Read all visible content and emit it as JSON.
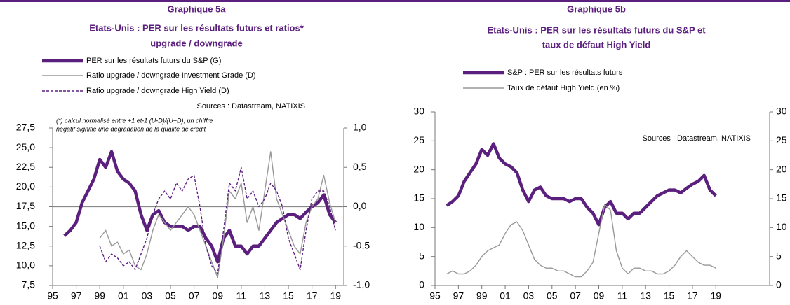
{
  "chart_data": [
    {
      "type": "line",
      "title": "Graphique 5a",
      "subtitle": [
        "Etats-Unis : PER sur les résultats futurs et ratios*",
        "upgrade / downgrade"
      ],
      "sources": "Sources : Datastream, NATIXIS",
      "note": [
        "(*) calcul normalisé entre +1 et-1 (U-D)/(U+D), un chiffre",
        "négatif signifie une dégradation de la qualité de crédit"
      ],
      "x": [
        1996,
        1996.5,
        1997,
        1997.5,
        1998,
        1998.5,
        1999,
        1999.5,
        2000,
        2000.5,
        2001,
        2001.5,
        2002,
        2002.5,
        2003,
        2003.5,
        2004,
        2004.5,
        2005,
        2005.5,
        2006,
        2006.5,
        2007,
        2007.5,
        2008,
        2008.5,
        2009,
        2009.5,
        2010,
        2010.5,
        2011,
        2011.5,
        2012,
        2012.5,
        2013,
        2013.5,
        2014,
        2014.5,
        2015,
        2015.5,
        2016,
        2016.5,
        2017,
        2017.5,
        2018,
        2018.5,
        2019
      ],
      "series": [
        {
          "name": "PER sur les résultats futurs du S&P (G)",
          "color": "#5b1f7e",
          "width": 4.5,
          "style": "solid",
          "values": [
            13.8,
            14.5,
            15.5,
            18,
            19.5,
            21,
            23.5,
            22.5,
            24.5,
            22,
            21,
            20.5,
            19.5,
            16.5,
            14.5,
            16.5,
            17,
            15.5,
            15,
            15,
            15,
            14.5,
            15,
            15,
            13.5,
            12.5,
            10.5,
            13.5,
            14.5,
            12.5,
            12.5,
            11.5,
            12.5,
            12.5,
            13.5,
            14.5,
            15.5,
            16,
            16.5,
            16.5,
            16,
            16.8,
            17.5,
            18,
            19,
            16.5,
            15.5
          ]
        },
        {
          "name": "Ratio upgrade / downgrade Investment Grade (D)",
          "color": "#999999",
          "width": 1.4,
          "style": "solid",
          "axis": "y2",
          "values": [
            null,
            null,
            null,
            null,
            null,
            null,
            -0.4,
            -0.3,
            -0.5,
            -0.45,
            -0.6,
            -0.55,
            -0.75,
            -0.8,
            -0.6,
            -0.3,
            -0.1,
            -0.2,
            -0.3,
            -0.2,
            -0.1,
            0.0,
            -0.1,
            -0.3,
            -0.5,
            -0.7,
            -0.9,
            -0.4,
            0.2,
            0.1,
            0.3,
            -0.2,
            0.0,
            -0.3,
            0.2,
            0.7,
            0.1,
            -0.1,
            -0.3,
            -0.5,
            -0.6,
            -0.2,
            0.0,
            0.1,
            0.4,
            0.05,
            -0.2
          ]
        },
        {
          "name": "Ratio upgrade / downgrade High Yield (D)",
          "color": "#5b1f7e",
          "width": 1.4,
          "style": "dashed",
          "axis": "y2",
          "values": [
            null,
            null,
            null,
            null,
            null,
            null,
            -0.5,
            -0.7,
            -0.6,
            -0.65,
            -0.75,
            -0.7,
            -0.8,
            -0.6,
            -0.4,
            -0.1,
            0.1,
            0.2,
            0.1,
            0.3,
            0.2,
            0.35,
            0.4,
            0.0,
            -0.5,
            -0.75,
            -0.85,
            -0.3,
            0.3,
            0.2,
            0.5,
            0.1,
            0.2,
            0.0,
            0.1,
            0.3,
            0.2,
            0.0,
            -0.4,
            -0.6,
            -0.8,
            -0.3,
            0.1,
            0.2,
            0.2,
            0.0,
            -0.3
          ]
        }
      ],
      "xlim": [
        1995,
        2019.7
      ],
      "xticks": [
        {
          "value": 1995,
          "label": "95"
        },
        {
          "value": 1997,
          "label": "97"
        },
        {
          "value": 1999,
          "label": "99"
        },
        {
          "value": 2001,
          "label": "01"
        },
        {
          "value": 2003,
          "label": "03"
        },
        {
          "value": 2005,
          "label": "05"
        },
        {
          "value": 2007,
          "label": "07"
        },
        {
          "value": 2009,
          "label": "09"
        },
        {
          "value": 2011,
          "label": "11"
        },
        {
          "value": 2013,
          "label": "13"
        },
        {
          "value": 2015,
          "label": "15"
        },
        {
          "value": 2017,
          "label": "17"
        },
        {
          "value": 2019,
          "label": "19"
        }
      ],
      "ylim": [
        7.5,
        27.5
      ],
      "yticks": [
        {
          "value": 7.5,
          "label": "7,5"
        },
        {
          "value": 10,
          "label": "10,0"
        },
        {
          "value": 12.5,
          "label": "12,5"
        },
        {
          "value": 15,
          "label": "15,0"
        },
        {
          "value": 17.5,
          "label": "17,5"
        },
        {
          "value": 20,
          "label": "20,0"
        },
        {
          "value": 22.5,
          "label": "22,5"
        },
        {
          "value": 25,
          "label": "25,0"
        },
        {
          "value": 27.5,
          "label": "27,5"
        }
      ],
      "y2lim": [
        -1,
        1
      ],
      "y2ticks": [
        {
          "value": -1,
          "label": "-1,0"
        },
        {
          "value": -0.5,
          "label": "-0,5"
        },
        {
          "value": 0,
          "label": "0,0"
        },
        {
          "value": 0.5,
          "label": "0,5"
        },
        {
          "value": 1,
          "label": "1,0"
        }
      ],
      "y2_zero_line": true
    },
    {
      "type": "line",
      "title": "Graphique 5b",
      "subtitle": [
        "Etats-Unis : PER sur les résultats futurs du S&P et",
        "taux de défaut High Yield"
      ],
      "sources": "Sources : Datastream, NATIXIS",
      "x": [
        1996,
        1996.5,
        1997,
        1997.5,
        1998,
        1998.5,
        1999,
        1999.5,
        2000,
        2000.5,
        2001,
        2001.5,
        2002,
        2002.5,
        2003,
        2003.5,
        2004,
        2004.5,
        2005,
        2005.5,
        2006,
        2006.5,
        2007,
        2007.5,
        2008,
        2008.5,
        2009,
        2009.5,
        2010,
        2010.5,
        2011,
        2011.5,
        2012,
        2012.5,
        2013,
        2013.5,
        2014,
        2014.5,
        2015,
        2015.5,
        2016,
        2016.5,
        2017,
        2017.5,
        2018,
        2018.5,
        2019
      ],
      "series": [
        {
          "name": "S&P : PER sur les résultats futurs",
          "color": "#5b1f7e",
          "width": 4.5,
          "style": "solid",
          "values": [
            13.8,
            14.5,
            15.5,
            18,
            19.5,
            21,
            23.5,
            22.5,
            24.5,
            22,
            21,
            20.5,
            19.5,
            16.5,
            14.5,
            16.5,
            17,
            15.5,
            15,
            15,
            15,
            14.5,
            15,
            15,
            13.5,
            12.5,
            10.5,
            13.5,
            14.5,
            12.5,
            12.5,
            11.5,
            12.5,
            12.5,
            13.5,
            14.5,
            15.5,
            16,
            16.5,
            16.5,
            16,
            16.8,
            17.5,
            18,
            19,
            16.5,
            15.5
          ]
        },
        {
          "name": "Taux de défaut High Yield (en %)",
          "color": "#999999",
          "width": 1.4,
          "style": "solid",
          "axis": "y2",
          "values": [
            2,
            2.5,
            2,
            2,
            2.5,
            3.5,
            5,
            6,
            6.5,
            7,
            9,
            10.5,
            11,
            9.5,
            7,
            4.5,
            3.5,
            3,
            3,
            2.5,
            2.5,
            2,
            1.5,
            1.5,
            2.5,
            4,
            9,
            14,
            13,
            6,
            3,
            2,
            3,
            3,
            2.5,
            2.5,
            2,
            2,
            2.5,
            3.5,
            5,
            6,
            5,
            4,
            3.5,
            3.5,
            3
          ]
        }
      ],
      "xlim": [
        1995,
        2023.6
      ],
      "xticks": [
        {
          "value": 1995,
          "label": "95"
        },
        {
          "value": 1997,
          "label": "97"
        },
        {
          "value": 1999,
          "label": "99"
        },
        {
          "value": 2001,
          "label": "01"
        },
        {
          "value": 2003,
          "label": "03"
        },
        {
          "value": 2005,
          "label": "05"
        },
        {
          "value": 2007,
          "label": "07"
        },
        {
          "value": 2009,
          "label": "09"
        },
        {
          "value": 2011,
          "label": "11"
        },
        {
          "value": 2013,
          "label": "13"
        },
        {
          "value": 2015,
          "label": "15"
        },
        {
          "value": 2017,
          "label": "17"
        },
        {
          "value": 2019,
          "label": "19"
        }
      ],
      "ylim": [
        0,
        30
      ],
      "yticks": [
        0,
        5,
        10,
        15,
        20,
        25,
        30
      ],
      "y2lim": [
        0,
        30
      ],
      "y2ticks": [
        0,
        5,
        10,
        15,
        20,
        25,
        30
      ]
    }
  ]
}
